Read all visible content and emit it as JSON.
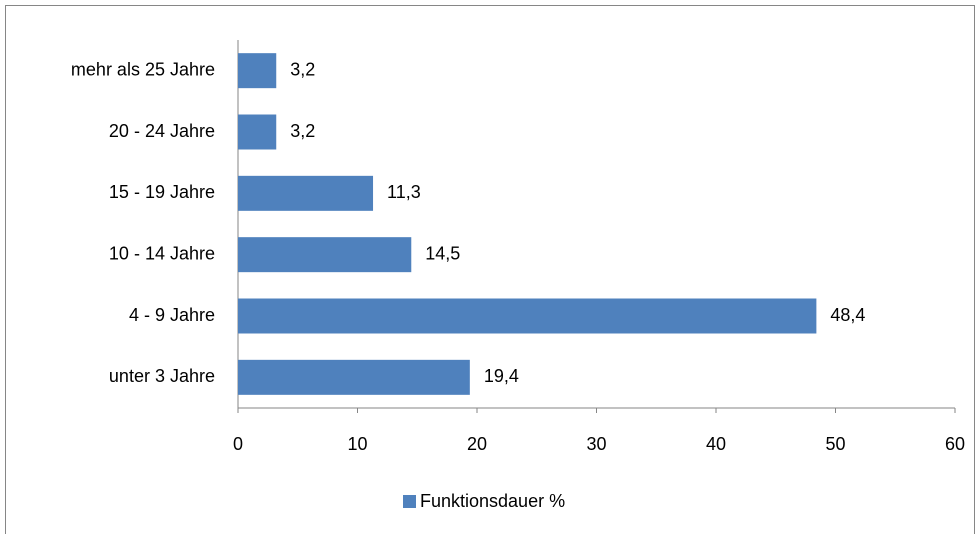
{
  "chart_data": {
    "type": "barh",
    "categories": [
      "unter 3 Jahre",
      "4 - 9 Jahre",
      "10 - 14 Jahre",
      "15 - 19 Jahre",
      "20 - 24 Jahre",
      "mehr als 25 Jahre"
    ],
    "series": [
      {
        "name": "Funktionsdauer %",
        "color": "#4f81bd",
        "values": [
          19.4,
          48.4,
          14.5,
          11.3,
          3.2,
          3.2
        ],
        "value_labels": [
          "19,4",
          "48,4",
          "14,5",
          "11,3",
          "3,2",
          "3,2"
        ]
      }
    ],
    "xlim": [
      0,
      60
    ],
    "xticks": [
      0,
      10,
      20,
      30,
      40,
      50,
      60
    ],
    "grid": false,
    "legend": "bottom"
  }
}
